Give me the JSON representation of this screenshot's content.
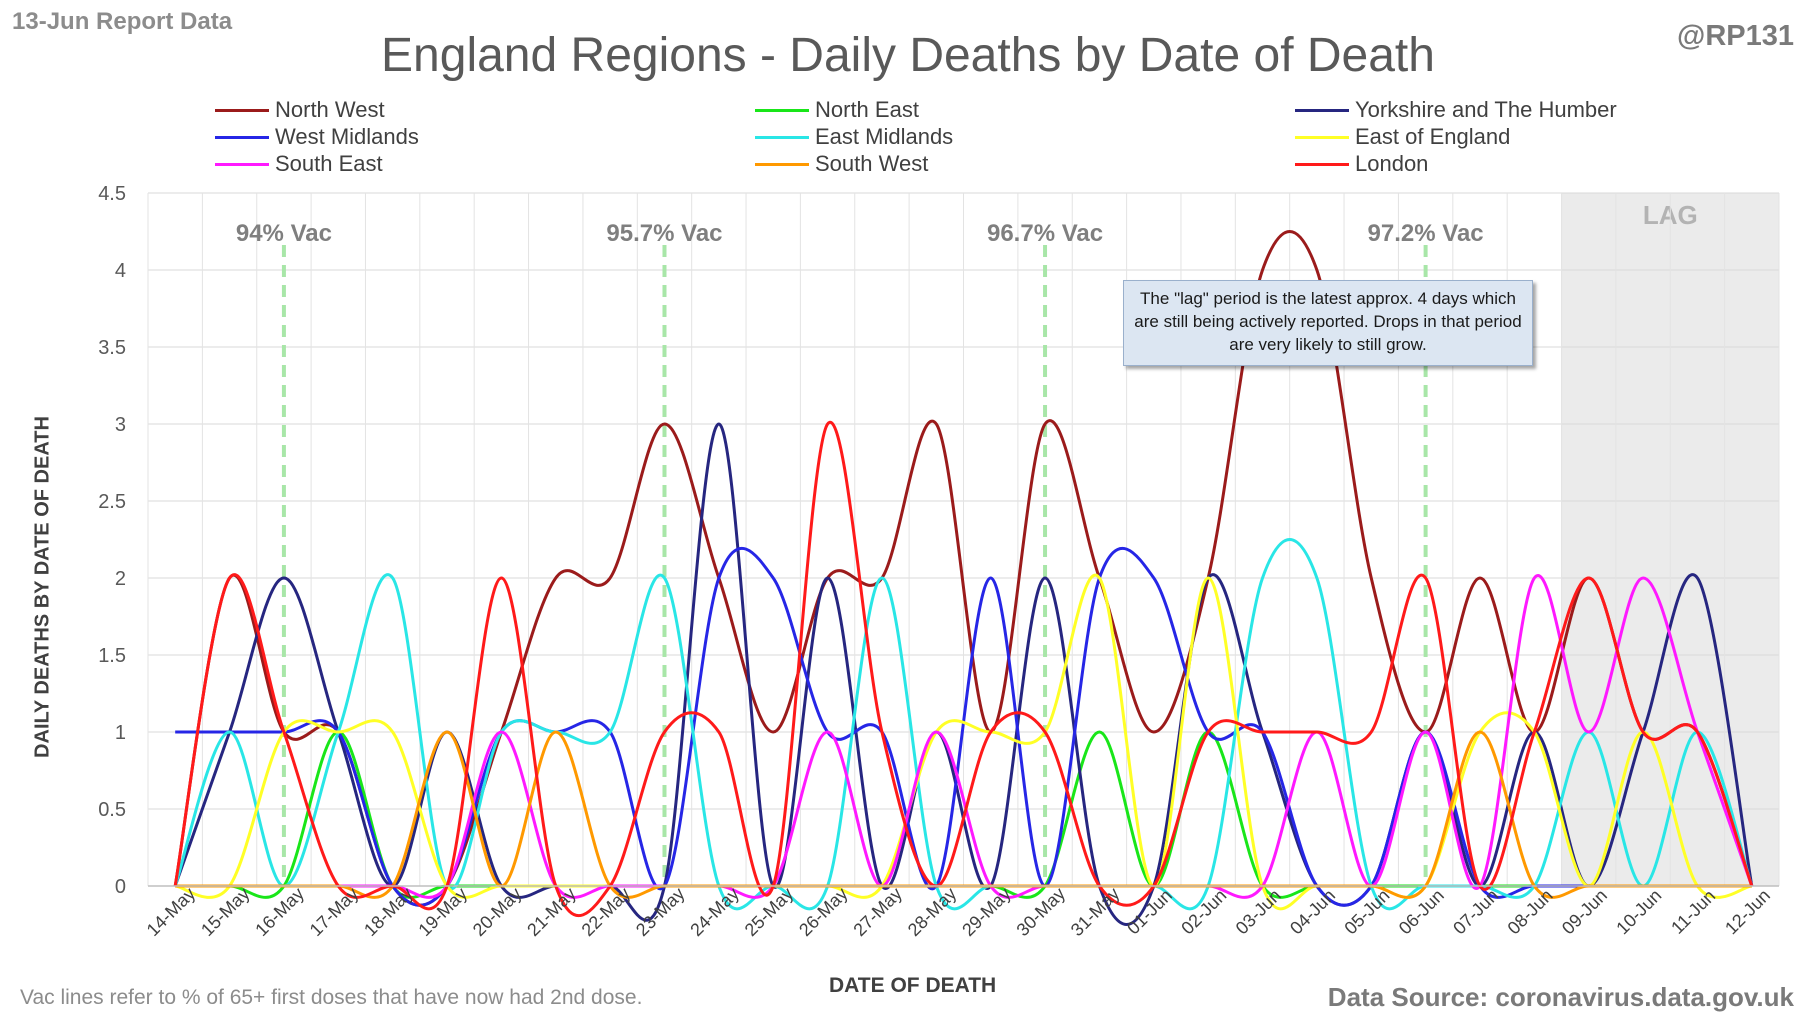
{
  "header": {
    "report_label": "13-Jun Report Data",
    "handle": "@RP131"
  },
  "footer": {
    "footnote": "Vac lines refer to % of 65+ first doses that have now had 2nd dose.",
    "source": "Data Source: coronavirus.data.gov.uk"
  },
  "note": "The \"lag\" period is the latest approx. 4 days which are still being actively reported. Drops in that period are very likely to still grow.",
  "chart_data": {
    "type": "line",
    "title": "England Regions - Daily Deaths by Date of Death",
    "xlabel": "DATE OF DEATH",
    "ylabel": "DAILY DEATHS BY DATE OF DEATH",
    "ylim": [
      0,
      4.5
    ],
    "y_ticks": [
      "0",
      "0.5",
      "1",
      "1.5",
      "2",
      "2.5",
      "3",
      "3.5",
      "4",
      "4.5"
    ],
    "grid": true,
    "smoothed": true,
    "legend_position": "top",
    "categories": [
      "14-May",
      "15-May",
      "16-May",
      "17-May",
      "18-May",
      "19-May",
      "20-May",
      "21-May",
      "22-May",
      "23-May",
      "24-May",
      "25-May",
      "26-May",
      "27-May",
      "28-May",
      "29-May",
      "30-May",
      "31-May",
      "01-Jun",
      "02-Jun",
      "03-Jun",
      "04-Jun",
      "05-Jun",
      "06-Jun",
      "07-Jun",
      "08-Jun",
      "09-Jun",
      "10-Jun",
      "11-Jun",
      "12-Jun"
    ],
    "vac_lines": [
      {
        "category": "16-May",
        "label": "94% Vac"
      },
      {
        "category": "23-May",
        "label": "95.7% Vac"
      },
      {
        "category": "30-May",
        "label": "96.7% Vac"
      },
      {
        "category": "06-Jun",
        "label": "97.2% Vac"
      }
    ],
    "lag": {
      "from": "09-Jun",
      "label": "LAG"
    },
    "series": [
      {
        "name": "North West",
        "color": "#9b1b1b",
        "values": [
          0,
          2,
          1,
          1,
          0,
          0,
          1,
          2,
          2,
          3,
          2,
          1,
          2,
          2,
          3,
          1,
          3,
          2,
          1,
          2,
          4,
          4,
          2,
          1,
          2,
          1,
          2,
          1,
          1,
          0
        ]
      },
      {
        "name": "North East",
        "color": "#19e619",
        "values": [
          0,
          0,
          0,
          1,
          0,
          0,
          0,
          0,
          0,
          0,
          0,
          0,
          0,
          0,
          0,
          0,
          0,
          1,
          0,
          1,
          0,
          0,
          0,
          0,
          0,
          0,
          0,
          0,
          0,
          0
        ]
      },
      {
        "name": "Yorkshire and The Humber",
        "color": "#262680",
        "values": [
          0,
          1,
          2,
          1,
          0,
          1,
          0,
          0,
          0,
          0,
          3,
          0,
          2,
          0,
          1,
          0,
          2,
          0,
          0,
          2,
          1,
          0,
          0,
          1,
          0,
          1,
          0,
          1,
          2,
          0
        ]
      },
      {
        "name": "West Midlands",
        "color": "#2626e6",
        "values": [
          1,
          1,
          1,
          1,
          0,
          0,
          1,
          1,
          1,
          0,
          2,
          2,
          1,
          1,
          0,
          2,
          0,
          2,
          2,
          1,
          1,
          0,
          0,
          1,
          0,
          0,
          0,
          0,
          0,
          0
        ]
      },
      {
        "name": "East Midlands",
        "color": "#29e6e6",
        "values": [
          0,
          1,
          0,
          1,
          2,
          0,
          1,
          1,
          1,
          2,
          0,
          0,
          0,
          2,
          0,
          0,
          0,
          0,
          0,
          0,
          2,
          2,
          0,
          0,
          0,
          0,
          1,
          0,
          1,
          0
        ]
      },
      {
        "name": "East of England",
        "color": "#ffff26",
        "values": [
          0,
          0,
          1,
          1,
          1,
          0,
          0,
          0,
          0,
          0,
          0,
          0,
          0,
          0,
          1,
          1,
          1,
          2,
          0,
          2,
          0,
          0,
          0,
          0,
          1,
          1,
          0,
          1,
          0,
          0
        ]
      },
      {
        "name": "South East",
        "color": "#ff19ff",
        "values": [
          0,
          0,
          0,
          0,
          0,
          0,
          1,
          0,
          0,
          0,
          0,
          0,
          1,
          0,
          1,
          0,
          0,
          0,
          0,
          0,
          0,
          1,
          0,
          1,
          0,
          2,
          1,
          2,
          1,
          0
        ]
      },
      {
        "name": "South West",
        "color": "#ff9900",
        "values": [
          0,
          0,
          0,
          0,
          0,
          1,
          0,
          1,
          0,
          0,
          0,
          0,
          0,
          0,
          0,
          0,
          0,
          0,
          0,
          0,
          0,
          0,
          0,
          0,
          1,
          0,
          0,
          0,
          0,
          0
        ]
      },
      {
        "name": "London",
        "color": "#ff1a1a",
        "values": [
          0,
          2,
          1,
          0,
          0,
          0,
          2,
          0,
          0,
          1,
          1,
          0,
          3,
          1,
          0,
          1,
          1,
          0,
          0,
          1,
          1,
          1,
          1,
          2,
          0,
          1,
          2,
          1,
          1,
          0
        ]
      }
    ]
  }
}
